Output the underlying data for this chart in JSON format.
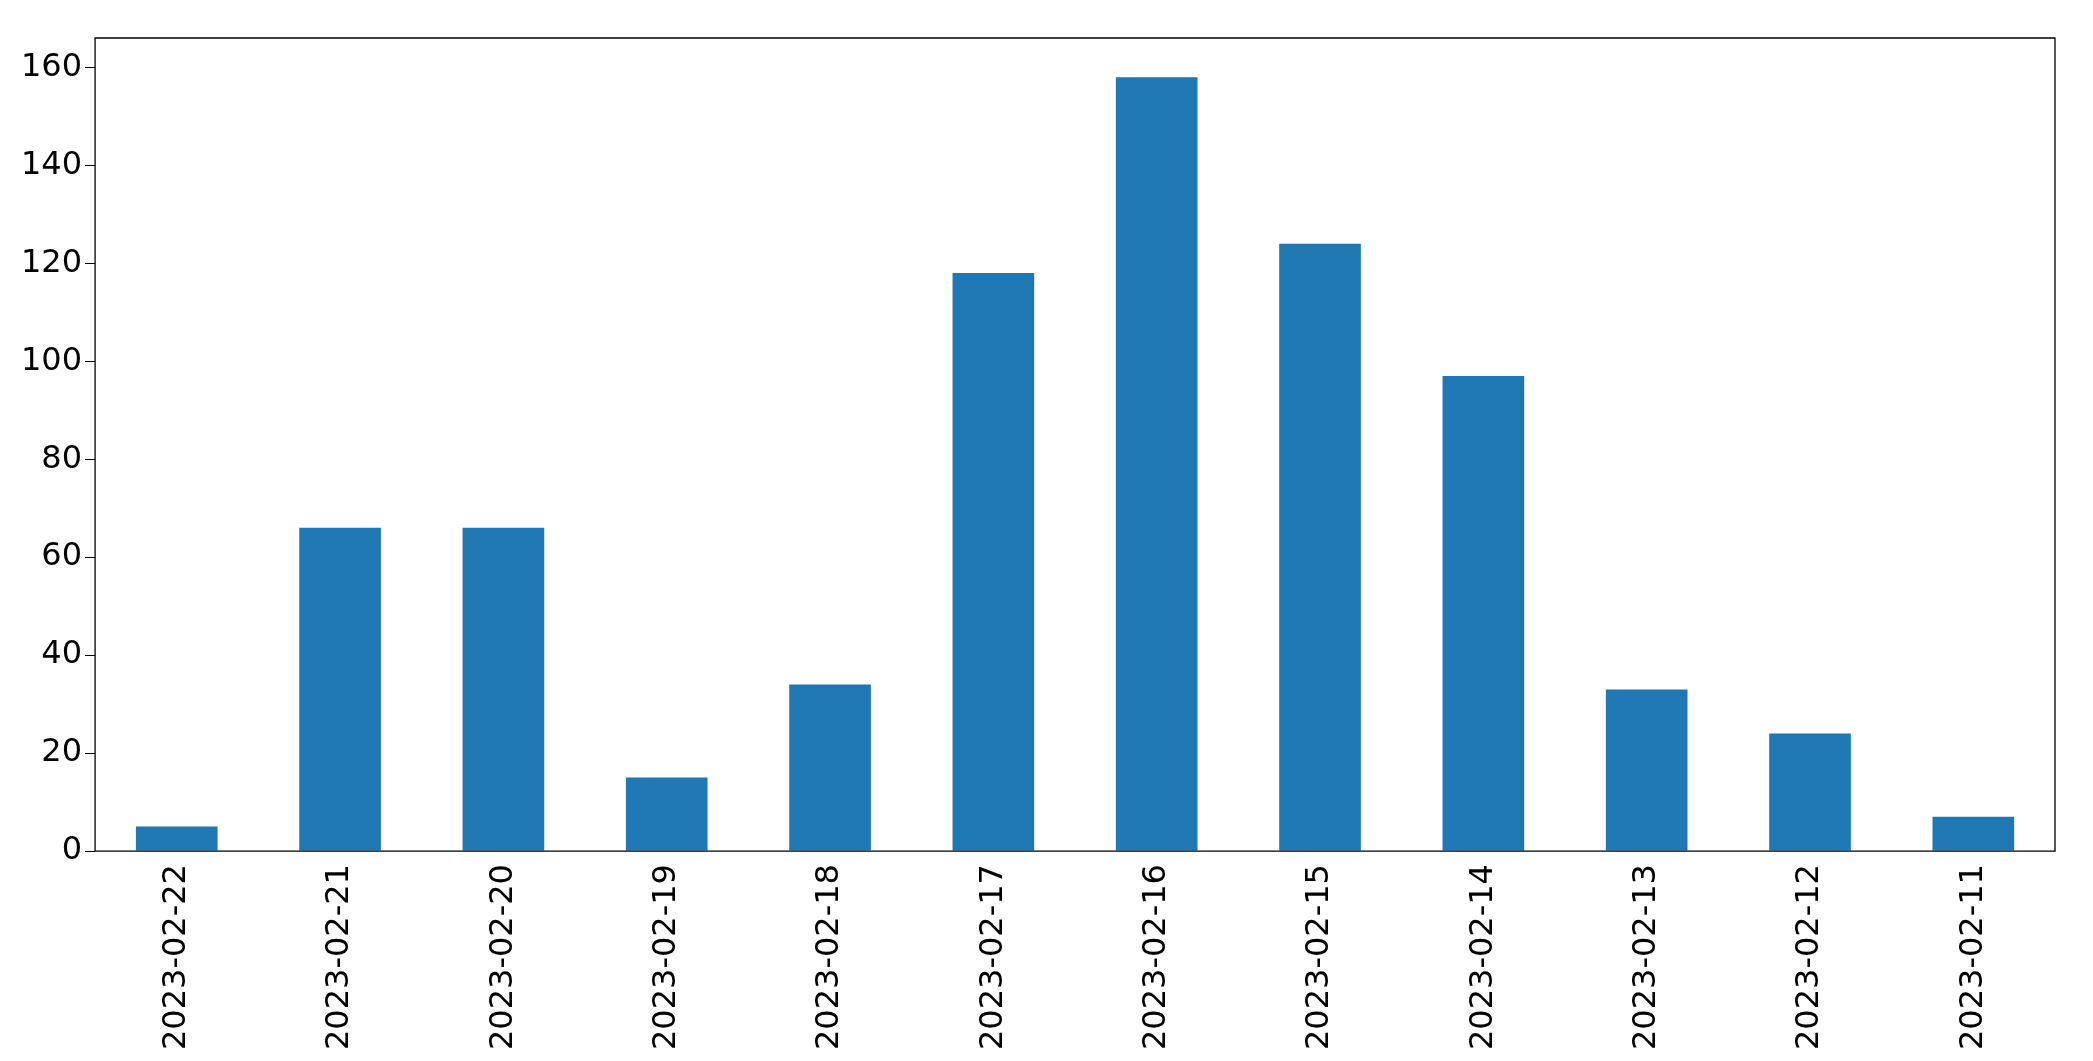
{
  "chart_data": {
    "type": "bar",
    "categories": [
      "2023-02-22",
      "2023-02-21",
      "2023-02-20",
      "2023-02-19",
      "2023-02-18",
      "2023-02-17",
      "2023-02-16",
      "2023-02-15",
      "2023-02-14",
      "2023-02-13",
      "2023-02-12",
      "2023-02-11"
    ],
    "values": [
      5,
      66,
      66,
      15,
      34,
      118,
      158,
      124,
      97,
      33,
      24,
      7
    ],
    "color": "#1f77b4",
    "ylim": [
      0,
      166
    ],
    "yticks": [
      0,
      20,
      40,
      60,
      80,
      100,
      120,
      140,
      160
    ],
    "grid": false,
    "legend": false
  }
}
